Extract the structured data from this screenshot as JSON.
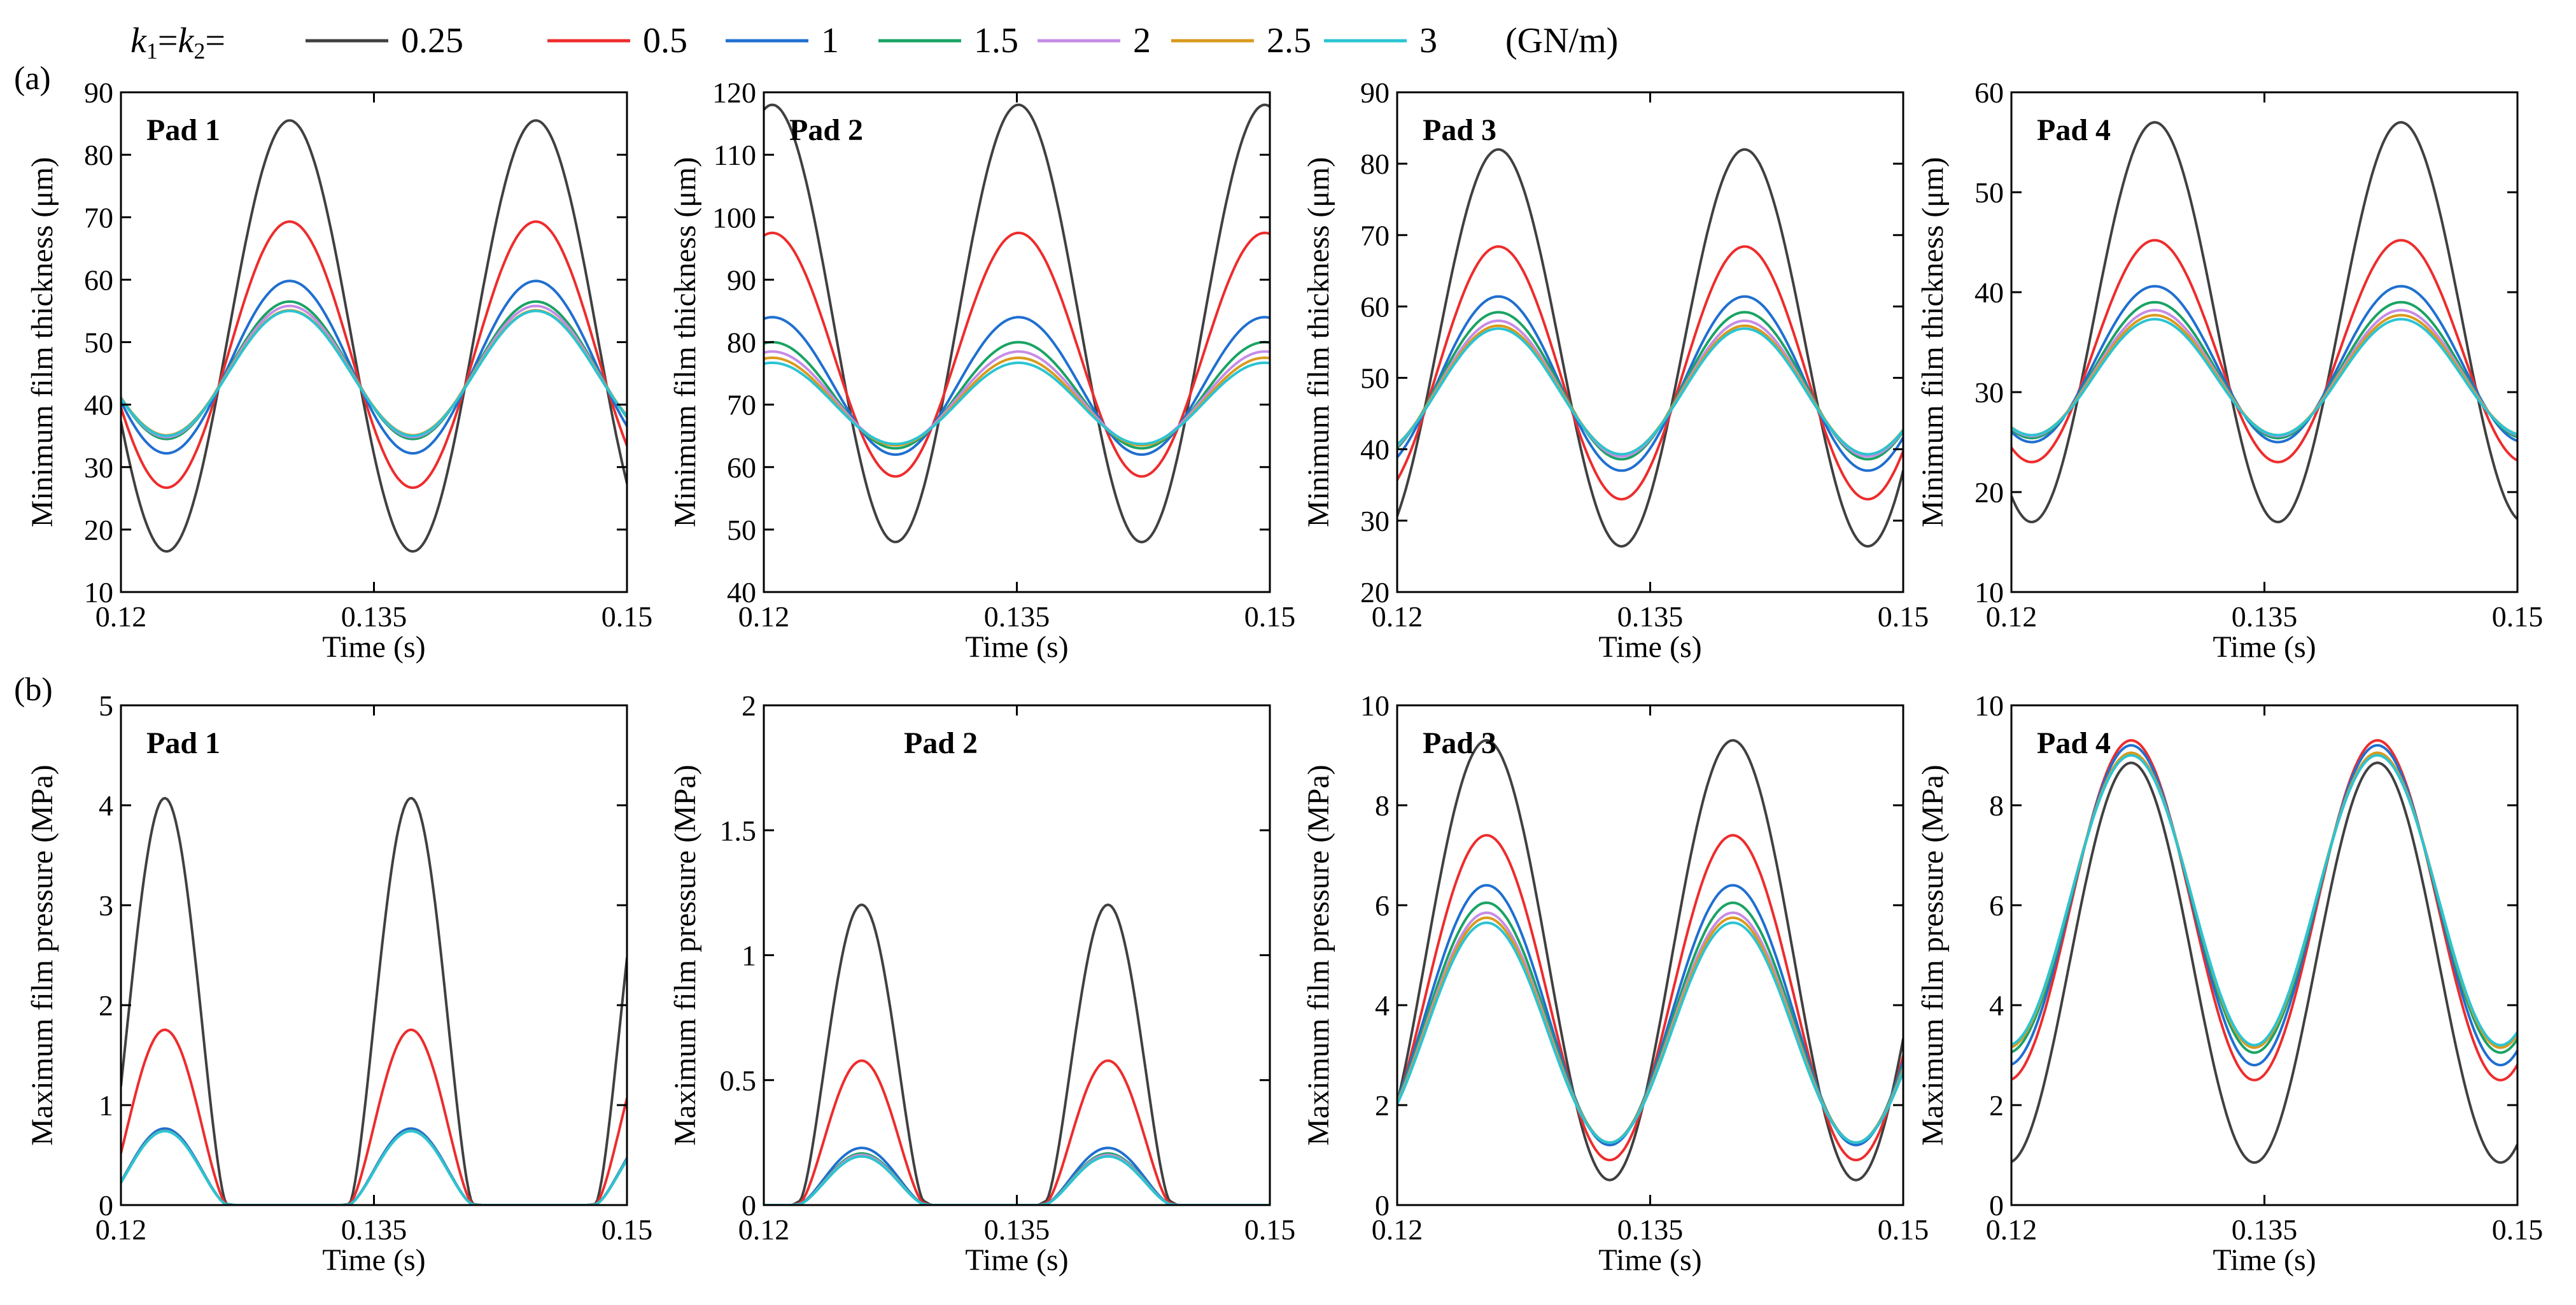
{
  "legend": {
    "prefix_k1": "k",
    "sub1": "1",
    "eq": "=",
    "prefix_k2": "k",
    "sub2": "2",
    "eq2": "=",
    "unit": "(GN/m)",
    "entries": [
      {
        "label": "0.25",
        "color": "#404040"
      },
      {
        "label": "0.5",
        "color": "#ee2c2c"
      },
      {
        "label": "1",
        "color": "#1f6fd0"
      },
      {
        "label": "1.5",
        "color": "#1aa364"
      },
      {
        "label": "2",
        "color": "#c58ce6"
      },
      {
        "label": "2.5",
        "color": "#d99a1c"
      },
      {
        "label": "3",
        "color": "#2bc4d3"
      }
    ]
  },
  "row_labels": [
    "(a)",
    "(b)"
  ],
  "chart_data": [
    {
      "type": "line",
      "row": 0,
      "col": 0,
      "pad": "Pad 1",
      "ylabel": "Minimum film thickness (μm)",
      "xlabel": "Time (s)",
      "xlim": [
        0.12,
        0.15
      ],
      "ylim": [
        10,
        90
      ],
      "xticks": [
        0.12,
        0.135,
        0.15
      ],
      "xticklabels": [
        "0.12",
        "0.135",
        "0.15"
      ],
      "yticks": [
        10,
        20,
        30,
        40,
        50,
        60,
        70,
        80,
        90
      ],
      "yticklabels": [
        "10",
        "20",
        "30",
        "40",
        "50",
        "60",
        "70",
        "80",
        "90"
      ],
      "model": "sine",
      "period": 0.0146,
      "phase": 0.13,
      "series_params": [
        [
          51,
          -34.5
        ],
        [
          48,
          -21.3
        ],
        [
          46,
          -13.8
        ],
        [
          45.5,
          -11
        ],
        [
          45.3,
          -10.5
        ],
        [
          45.1,
          -10
        ],
        [
          45,
          -10
        ]
      ]
    },
    {
      "type": "line",
      "row": 0,
      "col": 1,
      "pad": "Pad 2",
      "ylabel": "Minimum film thickness (μm)",
      "xlabel": "Time (s)",
      "xlim": [
        0.12,
        0.15
      ],
      "ylim": [
        40,
        120
      ],
      "xticks": [
        0.12,
        0.135,
        0.15
      ],
      "xticklabels": [
        "0.12",
        "0.135",
        "0.15"
      ],
      "yticks": [
        40,
        50,
        60,
        70,
        80,
        90,
        100,
        110,
        120
      ],
      "yticklabels": [
        "40",
        "50",
        "60",
        "70",
        "80",
        "90",
        "100",
        "110",
        "120"
      ],
      "model": "sine",
      "period": 0.0146,
      "phase": 0.1205,
      "series_params": [
        [
          83,
          -35
        ],
        [
          78,
          -19.5
        ],
        [
          73,
          -11
        ],
        [
          71.5,
          -8.5
        ],
        [
          71,
          -7.5
        ],
        [
          70.5,
          -7
        ],
        [
          70.2,
          -6.5
        ]
      ]
    },
    {
      "type": "line",
      "row": 0,
      "col": 2,
      "pad": "Pad 3",
      "ylabel": "Minimum film thickness (μm)",
      "xlabel": "Time (s)",
      "xlim": [
        0.12,
        0.15
      ],
      "ylim": [
        20,
        90
      ],
      "xticks": [
        0.12,
        0.135,
        0.15
      ],
      "xticklabels": [
        "0.12",
        "0.135",
        "0.15"
      ],
      "yticks": [
        20,
        30,
        40,
        50,
        60,
        70,
        80,
        90
      ],
      "yticklabels": [
        "20",
        "30",
        "40",
        "50",
        "60",
        "70",
        "80",
        "90"
      ],
      "model": "sine",
      "period": 0.0146,
      "phase": 0.126,
      "series_params": [
        [
          54.2,
          -27.8
        ],
        [
          50.7,
          -17.7
        ],
        [
          49.2,
          -12.2
        ],
        [
          48.9,
          -10.3
        ],
        [
          48.5,
          -9.5
        ],
        [
          48.3,
          -9
        ],
        [
          48.1,
          -8.8
        ]
      ]
    },
    {
      "type": "line",
      "row": 0,
      "col": 3,
      "pad": "Pad 4",
      "ylabel": "Minimum film thickness (μm)",
      "xlabel": "Time (s)",
      "xlim": [
        0.12,
        0.15
      ],
      "ylim": [
        10,
        60
      ],
      "xticks": [
        0.12,
        0.135,
        0.15
      ],
      "xticklabels": [
        "0.12",
        "0.135",
        "0.15"
      ],
      "yticks": [
        10,
        20,
        30,
        40,
        50,
        60
      ],
      "yticklabels": [
        "10",
        "20",
        "30",
        "40",
        "50",
        "60"
      ],
      "model": "sine",
      "period": 0.0146,
      "phase": 0.1285,
      "series_params": [
        [
          37,
          -20
        ],
        [
          34.1,
          -11.1
        ],
        [
          32.8,
          -7.8
        ],
        [
          32.2,
          -6.8
        ],
        [
          31.9,
          -6.3
        ],
        [
          31.7,
          -6
        ],
        [
          31.5,
          -5.8
        ]
      ]
    },
    {
      "type": "line",
      "row": 1,
      "col": 0,
      "pad": "Pad 1",
      "ylabel": "Maximum film pressure (MPa)",
      "xlabel": "Time (s)",
      "xlim": [
        0.12,
        0.15
      ],
      "ylim": [
        0,
        5
      ],
      "xticks": [
        0.12,
        0.135,
        0.15
      ],
      "xticklabels": [
        "0.12",
        "0.135",
        "0.15"
      ],
      "yticks": [
        0,
        1,
        2,
        3,
        4,
        5
      ],
      "yticklabels": [
        "0",
        "1",
        "2",
        "3",
        "4",
        "5"
      ],
      "model": "clipped",
      "period": 0.0146,
      "phase": 0.1226,
      "series_params": [
        [
          0.6,
          4.0
        ],
        [
          0.45,
          1.7
        ],
        [
          0.38,
          0.72
        ],
        [
          0.36,
          0.7
        ],
        [
          0.35,
          0.7
        ],
        [
          0.34,
          0.7
        ],
        [
          0.33,
          0.7
        ]
      ]
    },
    {
      "type": "line",
      "row": 1,
      "col": 1,
      "pad": "Pad 2",
      "ylabel": "Maximum film pressure (MPa)",
      "xlabel": "Time (s)",
      "xlim": [
        0.12,
        0.15
      ],
      "ylim": [
        0,
        2
      ],
      "xticks": [
        0.12,
        0.135,
        0.15
      ],
      "xticklabels": [
        "0.12",
        "0.135",
        "0.15"
      ],
      "yticks": [
        0,
        0.5,
        1,
        1.5,
        2
      ],
      "yticklabels": [
        "0",
        "0.5",
        "1",
        "1.5",
        "2"
      ],
      "model": "clipped",
      "period": 0.0146,
      "phase": 0.1258,
      "series_params": [
        [
          0.85,
          1.1
        ],
        [
          0.4,
          0.53
        ],
        [
          0.24,
          0.2
        ],
        [
          0.22,
          0.18
        ],
        [
          0.215,
          0.175
        ],
        [
          0.21,
          0.17
        ],
        [
          0.205,
          0.17
        ]
      ]
    },
    {
      "type": "line",
      "row": 1,
      "col": 2,
      "pad": "Pad 3",
      "ylabel": "Maximum film pressure (MPa)",
      "xlabel": "Time (s)",
      "xlim": [
        0.12,
        0.15
      ],
      "ylim": [
        0,
        10
      ],
      "xticks": [
        0.12,
        0.135,
        0.15
      ],
      "xticklabels": [
        "0.12",
        "0.135",
        "0.15"
      ],
      "yticks": [
        0,
        2,
        4,
        6,
        8,
        10
      ],
      "yticklabels": [
        "0",
        "2",
        "4",
        "6",
        "8",
        "10"
      ],
      "model": "sine",
      "period": 0.0146,
      "phase": 0.1326,
      "series_params": [
        [
          4.9,
          4.4
        ],
        [
          4.15,
          3.25
        ],
        [
          3.8,
          2.6
        ],
        [
          3.65,
          2.4
        ],
        [
          3.55,
          2.3
        ],
        [
          3.5,
          2.25
        ],
        [
          3.45,
          2.2
        ]
      ]
    },
    {
      "type": "line",
      "row": 1,
      "col": 3,
      "pad": "Pad 4",
      "ylabel": "Maximum film pressure (MPa)",
      "xlabel": "Time (s)",
      "xlim": [
        0.12,
        0.15
      ],
      "ylim": [
        0,
        10
      ],
      "xticks": [
        0.12,
        0.135,
        0.15
      ],
      "xticklabels": [
        "0.12",
        "0.135",
        "0.15"
      ],
      "yticks": [
        0,
        2,
        4,
        6,
        8,
        10
      ],
      "yticklabels": [
        "0",
        "2",
        "4",
        "6",
        "8",
        "10"
      ],
      "model": "sine",
      "period": 0.0146,
      "phase": 0.1344,
      "series_params": [
        [
          4.85,
          4.0
        ],
        [
          5.9,
          3.4
        ],
        [
          6.0,
          3.2
        ],
        [
          6.05,
          3.0
        ],
        [
          6.1,
          2.95
        ],
        [
          6.1,
          2.95
        ],
        [
          6.1,
          2.9
        ]
      ]
    }
  ]
}
